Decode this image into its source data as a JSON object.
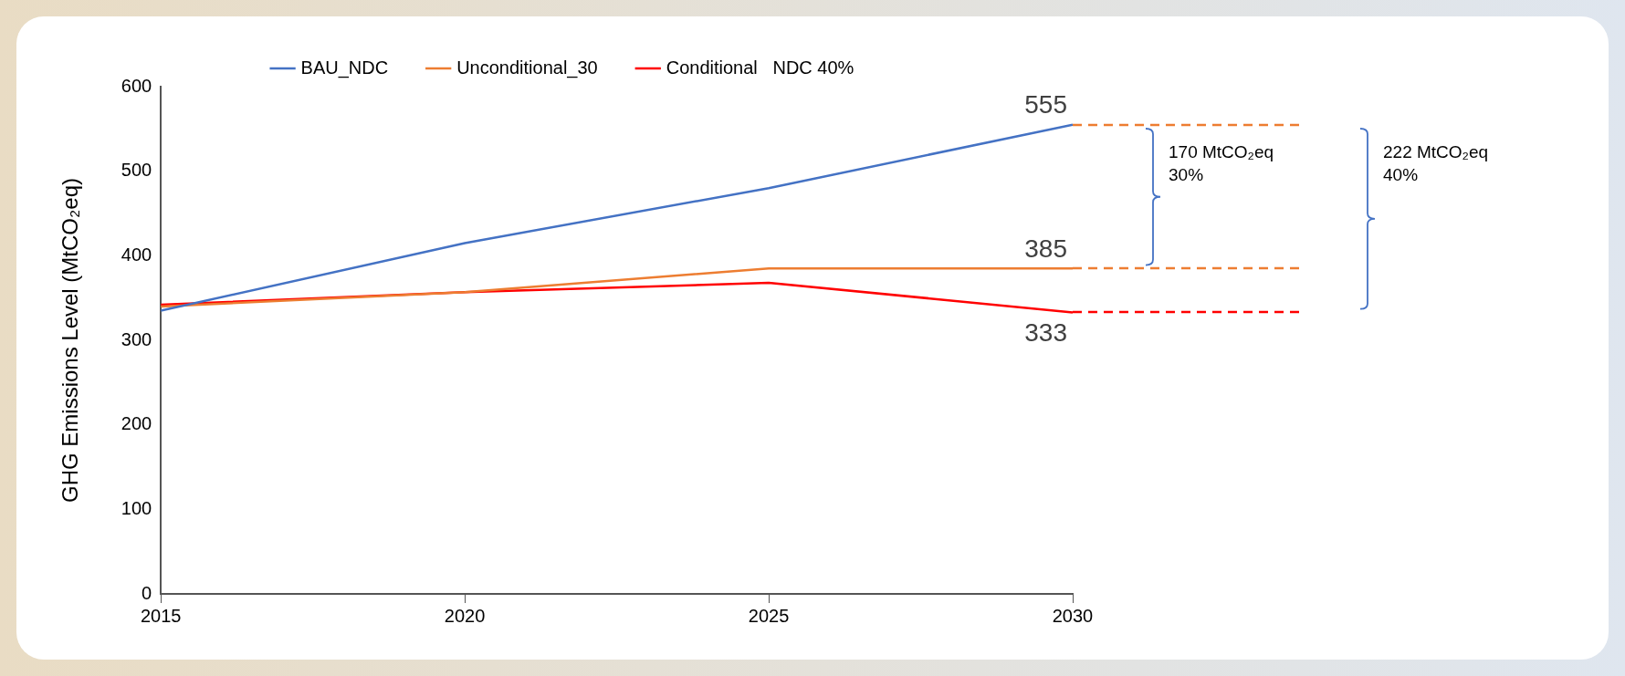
{
  "chart_data": {
    "type": "line",
    "ylabel": "GHG Emissions Level (MtCO₂eq)",
    "x": [
      2015,
      2020,
      2025,
      2030
    ],
    "xlim": [
      2015,
      2030
    ],
    "xticks": [
      2015,
      2020,
      2025,
      2030
    ],
    "ylim": [
      0,
      600
    ],
    "yticks": [
      0,
      100,
      200,
      300,
      400,
      500,
      600
    ],
    "grid": false,
    "legend": "top",
    "marker": "none",
    "line_style": "solid",
    "series": [
      {
        "name": "BAU_NDC",
        "color": "#4472c4",
        "values": [
          335,
          415,
          480,
          555
        ],
        "value_labels": [
          null,
          null,
          null,
          "555"
        ]
      },
      {
        "name": "Unconditional_30",
        "color": "#ed7d31",
        "values": [
          340,
          357,
          385,
          385
        ],
        "value_labels": [
          null,
          null,
          null,
          "385"
        ]
      },
      {
        "name": "Conditional   NDC 40%",
        "color": "#ff0000",
        "values": [
          342,
          357,
          368,
          333
        ],
        "value_labels": [
          null,
          null,
          null,
          "333"
        ]
      }
    ],
    "annotations": [
      "170 MtCO₂eq\n30%",
      "222 MtCO₂eq\n40%"
    ]
  }
}
